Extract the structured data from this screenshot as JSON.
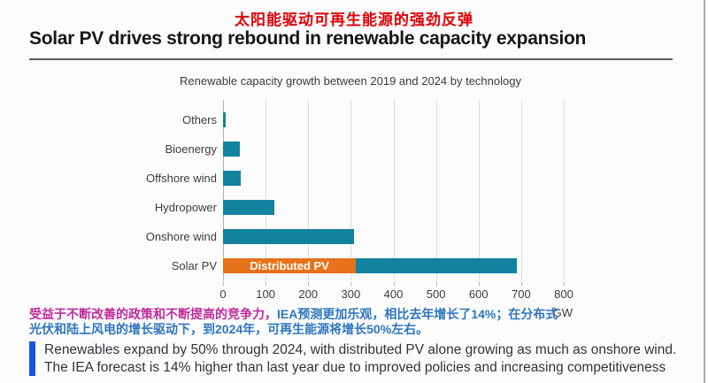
{
  "page": {
    "title_cn": "太阳能驱动可再生能源的强劲反弹",
    "title_en": "Solar PV drives strong rebound in renewable capacity expansion"
  },
  "chart_data": {
    "type": "bar",
    "orientation": "horizontal",
    "title": "Renewable capacity growth between 2019 and 2024 by technology",
    "categories": [
      "Others",
      "Bioenergy",
      "Offshore wind",
      "Hydropower",
      "Onshore wind",
      "Solar PV"
    ],
    "values": [
      7,
      40,
      42,
      120,
      308,
      690
    ],
    "solar_pv_segment": {
      "label": "Distributed PV",
      "value": 312
    },
    "unit": "GW",
    "xlim": [
      0,
      800
    ],
    "x_ticks": [
      0,
      100,
      200,
      300,
      400,
      500,
      600,
      700,
      800
    ],
    "grid": "vertical",
    "legend": "none",
    "colors": {
      "bar": "#12839E",
      "distributed_segment": "#E6721B"
    }
  },
  "annotation_cn": {
    "part1": "受益于不断改善的政策和不断提高的竞争力，",
    "part2": "IEA预测更加乐观，相比去年增长了14%；在分布式光伏和陆上风电的增长驱动下，到2024年，可再生能源将增长50%左右。"
  },
  "callout_en": {
    "line1": "Renewables expand by 50% through 2024, with distributed PV alone growing as much as onshore wind.",
    "line2": "The IEA forecast is 14% higher than last year due to improved policies and increasing competitiveness"
  },
  "colors": {
    "title_cn_red": "#E00008",
    "annotation_magenta": "#BE2A9B",
    "annotation_blue": "#2D76BD",
    "callout_bar_blue": "#1A52E3"
  }
}
